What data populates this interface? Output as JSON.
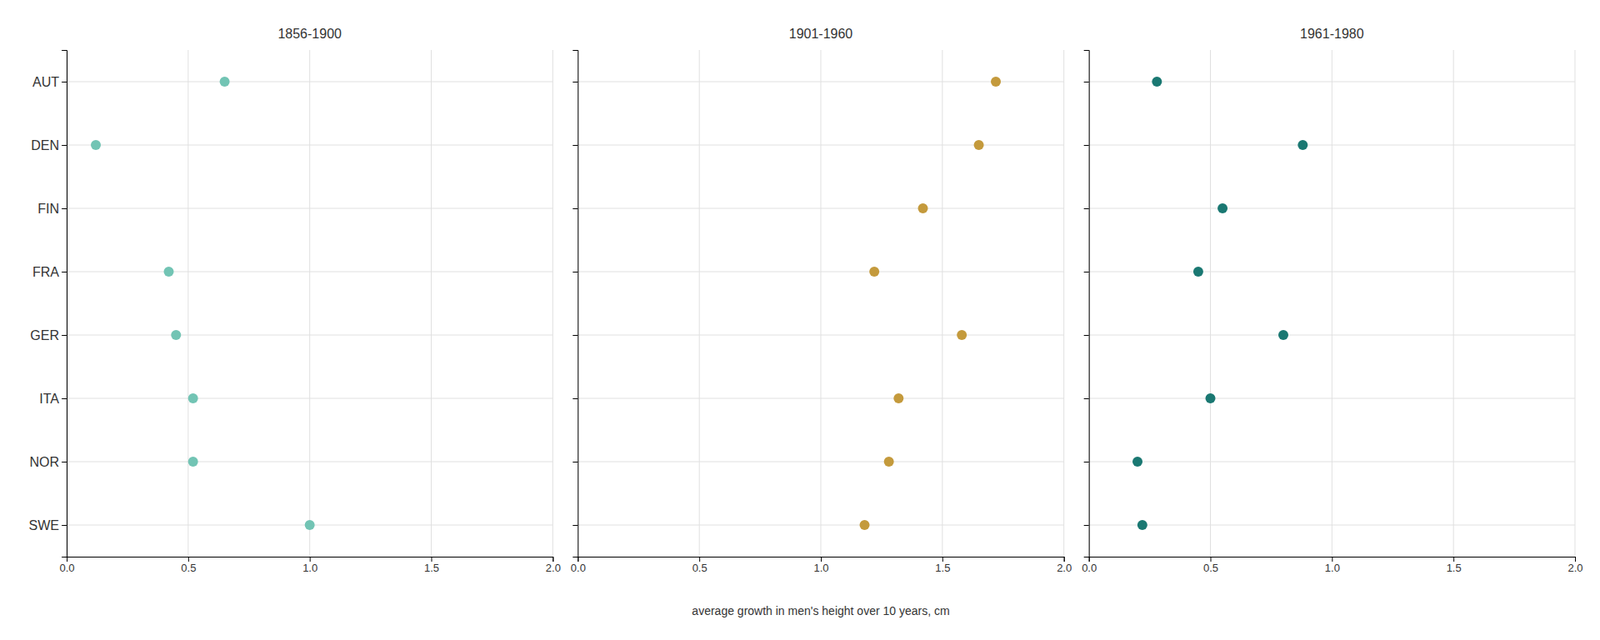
{
  "chart_data": [
    {
      "type": "scatter",
      "orientation": "horizontal",
      "title": "1856-1900",
      "categories": [
        "AUT",
        "DEN",
        "FIN",
        "FRA",
        "GER",
        "ITA",
        "NOR",
        "SWE"
      ],
      "values": [
        0.65,
        0.12,
        null,
        0.42,
        0.45,
        0.52,
        0.52,
        1.0
      ],
      "color": "#72c4b4",
      "xlim": [
        0,
        2
      ],
      "xticks": [
        {
          "value": 0,
          "label": "0.0"
        },
        0.5,
        {
          "value": 1,
          "label": "1.0"
        },
        1.5,
        {
          "value": 2,
          "label": "2.0"
        }
      ],
      "grid": true
    },
    {
      "type": "scatter",
      "orientation": "horizontal",
      "title": "1901-1960",
      "xlabel": "average growth in men's height over 10 years, cm",
      "categories": [
        "AUT",
        "DEN",
        "FIN",
        "FRA",
        "GER",
        "ITA",
        "NOR",
        "SWE"
      ],
      "values": [
        1.72,
        1.65,
        1.42,
        1.22,
        1.58,
        1.32,
        1.28,
        1.18
      ],
      "color": "#c49a3c",
      "xlim": [
        0,
        2
      ],
      "xticks": [
        {
          "value": 0,
          "label": "0.0"
        },
        0.5,
        {
          "value": 1,
          "label": "1.0"
        },
        1.5,
        {
          "value": 2,
          "label": "2.0"
        }
      ],
      "grid": true,
      "tick_labels": "x"
    },
    {
      "type": "scatter",
      "orientation": "horizontal",
      "title": "1961-1980",
      "categories": [
        "AUT",
        "DEN",
        "FIN",
        "FRA",
        "GER",
        "ITA",
        "NOR",
        "SWE"
      ],
      "values": [
        0.28,
        0.88,
        0.55,
        0.45,
        0.8,
        0.5,
        0.2,
        0.22
      ],
      "color": "#1a7872",
      "xlim": [
        0,
        2
      ],
      "xticks": [
        {
          "value": 0,
          "label": "0.0"
        },
        0.5,
        {
          "value": 1,
          "label": "1.0"
        },
        1.5,
        {
          "value": 2,
          "label": "2.0"
        }
      ],
      "grid": true,
      "tick_labels": "x"
    }
  ]
}
